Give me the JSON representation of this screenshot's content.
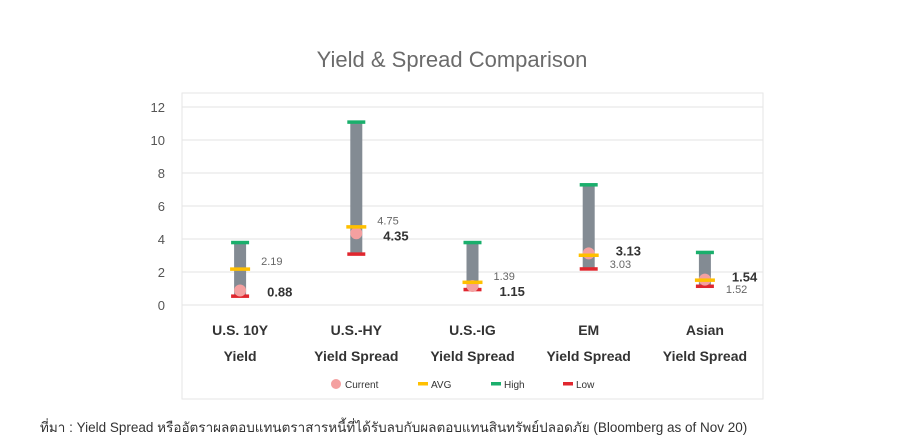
{
  "chart_data": {
    "type": "range",
    "title": "Yield & Spread Comparison",
    "categories": [
      [
        "U.S. 10Y",
        "Yield"
      ],
      [
        "U.S.-HY",
        "Yield Spread"
      ],
      [
        "U.S.-IG",
        "Yield Spread"
      ],
      [
        "EM",
        "Yield Spread"
      ],
      [
        "Asian",
        "Yield Spread"
      ]
    ],
    "series": [
      {
        "name": "Current",
        "values": [
          0.88,
          4.35,
          1.15,
          3.13,
          1.54
        ],
        "color": "#f4a0a0"
      },
      {
        "name": "AVG",
        "values": [
          2.19,
          4.75,
          1.39,
          3.03,
          1.52
        ],
        "color": "#ffc000"
      },
      {
        "name": "High",
        "values": [
          3.8,
          11.1,
          3.8,
          7.3,
          3.2
        ],
        "color": "#1aaf6c"
      },
      {
        "name": "Low",
        "values": [
          0.55,
          3.1,
          0.95,
          2.2,
          1.15
        ],
        "color": "#e0262e"
      }
    ],
    "range_bar_color": "#838b93",
    "current_labels": [
      "0.88",
      "4.35",
      "1.15",
      "3.13",
      "1.54"
    ],
    "avg_labels": [
      "2.19",
      "4.75",
      "1.39",
      "3.03",
      "1.52"
    ],
    "ylim": [
      0,
      12
    ],
    "yticks": [
      0,
      2,
      4,
      6,
      8,
      10,
      12
    ],
    "legend": [
      "Current",
      "AVG",
      "High",
      "Low"
    ],
    "legend_position": "bottom"
  },
  "source_note": "ที่มา : Yield Spread หรืออัตราผลตอบแทนตราสารหนี้ที่ได้รับลบกับผลตอบแทนสินทรัพย์ปลอดภัย (Bloomberg as of Nov 20)"
}
